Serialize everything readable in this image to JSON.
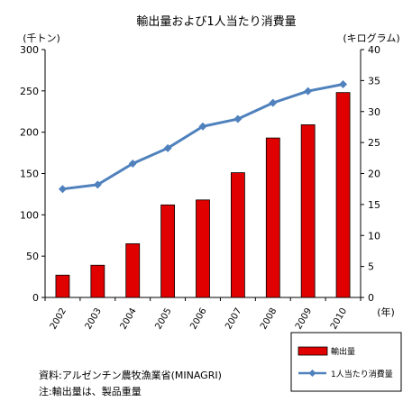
{
  "chart_data": {
    "type": "bar+line",
    "title": "輸出量および1人当たり消費量",
    "categories": [
      "2002",
      "2003",
      "2004",
      "2005",
      "2006",
      "2007",
      "2008",
      "2009",
      "2010"
    ],
    "x_unit": "(年)",
    "left_axis": {
      "unit": "(千トン)",
      "ylim": [
        0,
        300
      ],
      "ticks": [
        0,
        50,
        100,
        150,
        200,
        250,
        300
      ]
    },
    "right_axis": {
      "unit": "(キログラム)",
      "ylim": [
        0,
        40
      ],
      "ticks": [
        0,
        5,
        10,
        15,
        20,
        25,
        30,
        35,
        40
      ]
    },
    "series": [
      {
        "name": "輸出量",
        "type": "bar",
        "axis": "left",
        "color": "#e00000",
        "values": [
          27,
          39,
          65,
          112,
          118,
          151,
          193,
          209,
          248
        ]
      },
      {
        "name": "1人当たり消費量",
        "type": "line",
        "axis": "right",
        "color": "#4f81bd",
        "values": [
          17.5,
          18.2,
          21.6,
          24.1,
          27.6,
          28.8,
          31.4,
          33.3,
          34.4
        ]
      }
    ],
    "legend_position": "bottom-right",
    "grid": false
  },
  "notes": {
    "source": "資料:アルゼンチン農牧漁業省(MINAGRI)",
    "footnote": "注:輸出量は、製品重量"
  }
}
